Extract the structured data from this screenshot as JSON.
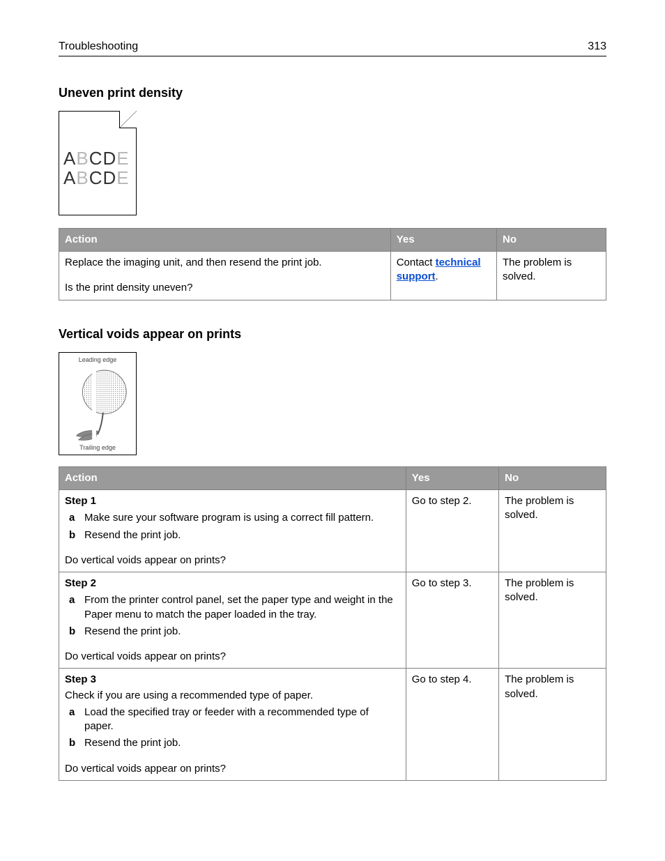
{
  "header": {
    "section": "Troubleshooting",
    "page": "313"
  },
  "section1": {
    "title": "Uneven print density",
    "sample_text": "ABCDE",
    "table": {
      "cols": [
        "Action",
        "Yes",
        "No"
      ],
      "col_widths": [
        "60.6%",
        "19.4%",
        "20%"
      ],
      "rows": [
        {
          "action_text": "Replace the imaging unit, and then resend the print job.",
          "question": "Is the print density uneven?",
          "yes_pre": "Contact ",
          "yes_link": "technical support",
          "yes_post": ".",
          "no": "The problem is solved."
        }
      ]
    }
  },
  "section2": {
    "title": "Vertical voids appear on prints",
    "leading": "Leading edge",
    "trailing": "Trailing edge",
    "table": {
      "cols": [
        "Action",
        "Yes",
        "No"
      ],
      "col_widths": [
        "63.4%",
        "17%",
        "19.6%"
      ],
      "rows": [
        {
          "step": "Step 1",
          "items": [
            "Make sure your software program is using a correct fill pattern.",
            "Resend the print job."
          ],
          "question": "Do vertical voids appear on prints?",
          "yes": "Go to step 2.",
          "no": "The problem is solved."
        },
        {
          "step": "Step 2",
          "items": [
            "From the printer control panel, set the paper type and weight in the Paper menu to match the paper loaded in the tray.",
            "Resend the print job."
          ],
          "question": "Do vertical voids appear on prints?",
          "yes": "Go to step 3.",
          "no": "The problem is solved."
        },
        {
          "step": "Step 3",
          "pretext": "Check if you are using a recommended type of paper.",
          "items": [
            "Load the specified tray or feeder with a recommended type of paper.",
            "Resend the print job."
          ],
          "question": "Do vertical voids appear on prints?",
          "yes": "Go to step 4.",
          "no": "The problem is solved."
        }
      ]
    }
  },
  "colors": {
    "header_bg": "#9a9a9a",
    "header_fg": "#ffffff",
    "border": "#808080",
    "link": "#0b4fd1"
  }
}
